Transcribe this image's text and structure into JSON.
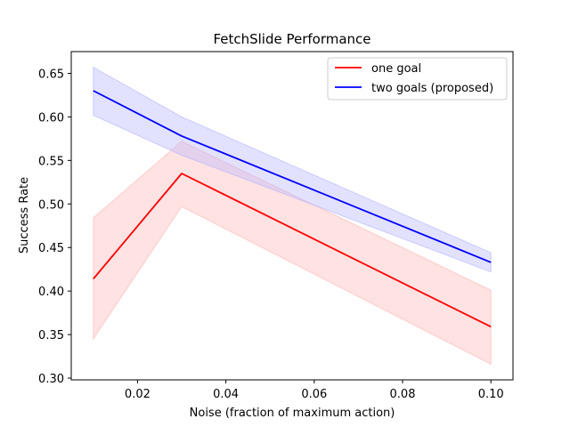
{
  "chart_data": {
    "type": "line",
    "title": "FetchSlide Performance",
    "xlabel": "Noise (fraction of maximum action)",
    "ylabel": "Success Rate",
    "xlim": [
      0.005,
      0.105
    ],
    "ylim": [
      0.298,
      0.675
    ],
    "xticks": [
      0.02,
      0.04,
      0.06,
      0.08,
      0.1
    ],
    "xtick_labels": [
      "0.02",
      "0.04",
      "0.06",
      "0.08",
      "0.10"
    ],
    "yticks": [
      0.3,
      0.35,
      0.4,
      0.45,
      0.5,
      0.55,
      0.6,
      0.65
    ],
    "ytick_labels": [
      "0.30",
      "0.35",
      "0.40",
      "0.45",
      "0.50",
      "0.55",
      "0.60",
      "0.65"
    ],
    "grid": false,
    "legend_position": "top-right",
    "x": [
      0.01,
      0.03,
      0.1
    ],
    "series": [
      {
        "name": "one goal",
        "color": "#ff0000",
        "band_color": "#ffb3b3",
        "values": [
          0.414,
          0.535,
          0.359
        ],
        "lower": [
          0.345,
          0.497,
          0.316
        ],
        "upper": [
          0.484,
          0.572,
          0.401
        ]
      },
      {
        "name": "two goals (proposed)",
        "color": "#0000ff",
        "band_color": "#b3b3ff",
        "values": [
          0.63,
          0.578,
          0.433
        ],
        "lower": [
          0.602,
          0.556,
          0.422
        ],
        "upper": [
          0.657,
          0.6,
          0.444
        ]
      }
    ]
  }
}
